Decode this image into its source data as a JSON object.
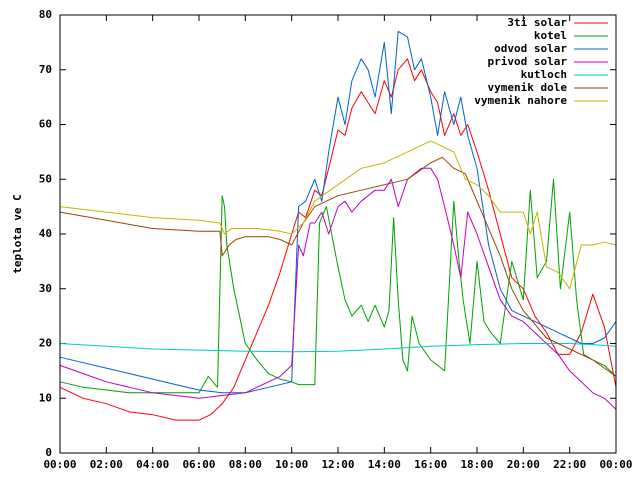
{
  "chart_data": {
    "type": "line",
    "title": "",
    "xlabel": "",
    "ylabel": "teplota ve C",
    "xlim": [
      0,
      24
    ],
    "ylim": [
      0,
      80
    ],
    "x_ticks": [
      "00:00",
      "02:00",
      "04:00",
      "06:00",
      "08:00",
      "10:00",
      "12:00",
      "14:00",
      "16:00",
      "18:00",
      "20:00",
      "22:00",
      "00:00"
    ],
    "y_ticks": [
      "0",
      "10",
      "20",
      "30",
      "40",
      "50",
      "60",
      "70",
      "80"
    ],
    "grid": false,
    "legend_position": "top-right",
    "series": [
      {
        "name": "3ti solar",
        "color": "#ff0000",
        "x": [
          0,
          1,
          2,
          3,
          4,
          5,
          6,
          6.5,
          7,
          7.5,
          8,
          8.5,
          9,
          9.5,
          10,
          10.3,
          10.6,
          11,
          11.3,
          11.6,
          12,
          12.3,
          12.6,
          13,
          13.3,
          13.6,
          14,
          14.3,
          14.6,
          15,
          15.3,
          15.6,
          16,
          16.3,
          16.6,
          17,
          17.3,
          17.6,
          18,
          18.5,
          19,
          19.5,
          20,
          20.5,
          21,
          21.5,
          22,
          22.5,
          23,
          23.5,
          24
        ],
        "y": [
          12,
          10,
          9,
          7.5,
          7,
          6,
          6,
          7,
          9,
          12,
          17,
          22,
          27,
          33,
          40,
          44,
          43,
          48,
          47,
          52,
          59,
          58,
          63,
          66,
          64,
          62,
          68,
          65,
          70,
          72,
          68,
          70,
          66,
          64,
          58,
          62,
          58,
          60,
          55,
          48,
          40,
          32,
          30,
          25,
          22,
          18,
          18,
          22,
          29,
          23,
          12
        ]
      },
      {
        "name": "kotel",
        "color": "#00a000",
        "x": [
          0,
          1,
          2,
          3,
          4,
          5,
          6,
          6.4,
          6.8,
          7.0,
          7.1,
          7.2,
          7.5,
          8,
          8.5,
          9,
          9.5,
          10,
          10.3,
          10.6,
          11,
          11.2,
          11.5,
          12,
          12.3,
          12.6,
          13,
          13.3,
          13.6,
          14,
          14.2,
          14.4,
          14.6,
          14.8,
          15,
          15.2,
          15.5,
          16,
          16.3,
          16.6,
          17,
          17.2,
          17.4,
          17.7,
          18,
          18.3,
          18.6,
          19,
          19.5,
          20,
          20.3,
          20.6,
          21,
          21.3,
          21.6,
          22,
          22.3,
          22.6,
          23,
          23.5,
          24
        ],
        "y": [
          13,
          12,
          11.5,
          11,
          11,
          11,
          11,
          14,
          12,
          47,
          45,
          38,
          30,
          20,
          17,
          14.5,
          13.5,
          13,
          12.5,
          12.5,
          12.5,
          42,
          45,
          34,
          28,
          25,
          27,
          24,
          27,
          23,
          26,
          43,
          28,
          17,
          15,
          25,
          20,
          17,
          16,
          15,
          46,
          36,
          28,
          20,
          35,
          24,
          22,
          20,
          35,
          28,
          48,
          32,
          35,
          50,
          30,
          44,
          28,
          18,
          17,
          16,
          14
        ]
      },
      {
        "name": "odvod solar",
        "color": "#0060d0",
        "x": [
          0,
          1,
          2,
          3,
          4,
          5,
          6,
          7,
          8,
          9,
          10,
          10.3,
          10.6,
          11,
          11.3,
          11.6,
          12,
          12.3,
          12.6,
          13,
          13.3,
          13.6,
          14,
          14.3,
          14.6,
          15,
          15.3,
          15.6,
          16,
          16.3,
          16.6,
          17,
          17.3,
          17.6,
          18,
          18.5,
          19,
          19.5,
          20,
          20.5,
          21,
          21.5,
          22,
          22.5,
          23,
          23.5,
          24
        ],
        "y": [
          17.5,
          16.5,
          15.5,
          14.5,
          13.5,
          12.5,
          11.5,
          11,
          11,
          12,
          13,
          45,
          46,
          50,
          46,
          55,
          65,
          60,
          68,
          72,
          70,
          65,
          75,
          62,
          77,
          76,
          70,
          72,
          65,
          58,
          66,
          60,
          65,
          58,
          52,
          38,
          30,
          26,
          25,
          24,
          23,
          22,
          21,
          20,
          20,
          21,
          24
        ]
      },
      {
        "name": "privod solar",
        "color": "#c000c0",
        "x": [
          0,
          1,
          2,
          3,
          4,
          5,
          6,
          7,
          8,
          9,
          9.5,
          10,
          10.3,
          10.5,
          10.8,
          11,
          11.3,
          11.6,
          12,
          12.3,
          12.6,
          13,
          13.3,
          13.6,
          14,
          14.3,
          14.6,
          15,
          15.3,
          15.6,
          16,
          16.3,
          16.6,
          17,
          17.3,
          17.6,
          18,
          18.5,
          19,
          19.5,
          20,
          20.5,
          21,
          21.5,
          22,
          22.5,
          23,
          23.5,
          24
        ],
        "y": [
          16,
          14.5,
          13,
          12,
          11,
          10.5,
          10,
          10.5,
          11,
          13,
          14,
          16,
          38,
          36,
          42,
          42,
          44,
          40,
          45,
          46,
          44,
          46,
          47,
          48,
          48,
          50,
          45,
          50,
          51,
          52,
          52,
          50,
          45,
          38,
          32,
          44,
          40,
          34,
          28,
          25,
          24,
          22,
          20,
          18,
          15,
          13,
          11,
          10,
          8
        ]
      },
      {
        "name": "kutloch",
        "color": "#00c8c8",
        "x": [
          0,
          2,
          4,
          6,
          8,
          10,
          12,
          14,
          16,
          18,
          20,
          22,
          23,
          24
        ],
        "y": [
          20,
          19.5,
          19,
          18.8,
          18.6,
          18.5,
          18.6,
          19,
          19.5,
          19.8,
          20,
          20,
          19.8,
          19.5
        ]
      },
      {
        "name": "vymenik dole",
        "color": "#a04000",
        "x": [
          0,
          2,
          4,
          6,
          6.9,
          7.0,
          7.3,
          7.6,
          8,
          8.5,
          9,
          9.5,
          10,
          10.5,
          11,
          12,
          13,
          14,
          15,
          16,
          16.5,
          17,
          17.5,
          18,
          18.5,
          19,
          19.5,
          20,
          21,
          22,
          23,
          24
        ],
        "y": [
          44,
          42.5,
          41,
          40.5,
          40.5,
          36,
          38,
          39,
          39.5,
          39.5,
          39.5,
          39,
          38,
          42,
          45,
          47,
          48,
          49,
          50,
          53,
          54,
          52,
          51,
          46,
          41,
          36,
          30,
          26,
          21,
          19,
          17,
          14
        ]
      },
      {
        "name": "vymenik nahore",
        "color": "#c8b400",
        "x": [
          0,
          2,
          4,
          6,
          6.9,
          7.1,
          7.4,
          7.8,
          8.5,
          9.5,
          10,
          10.5,
          11,
          12,
          13,
          14,
          15,
          16,
          16.5,
          17,
          17.5,
          18,
          18.5,
          19,
          19.5,
          20,
          20.3,
          20.6,
          21,
          21.5,
          22,
          22.5,
          23,
          23.5,
          24
        ],
        "y": [
          45,
          44,
          43,
          42.5,
          42,
          40,
          41,
          41,
          41,
          40.5,
          40,
          42,
          46,
          49,
          52,
          53,
          55,
          57,
          56,
          55,
          50,
          49,
          47,
          44,
          44,
          44,
          40,
          44,
          34,
          33,
          30,
          38,
          38,
          38.5,
          38
        ]
      }
    ]
  }
}
